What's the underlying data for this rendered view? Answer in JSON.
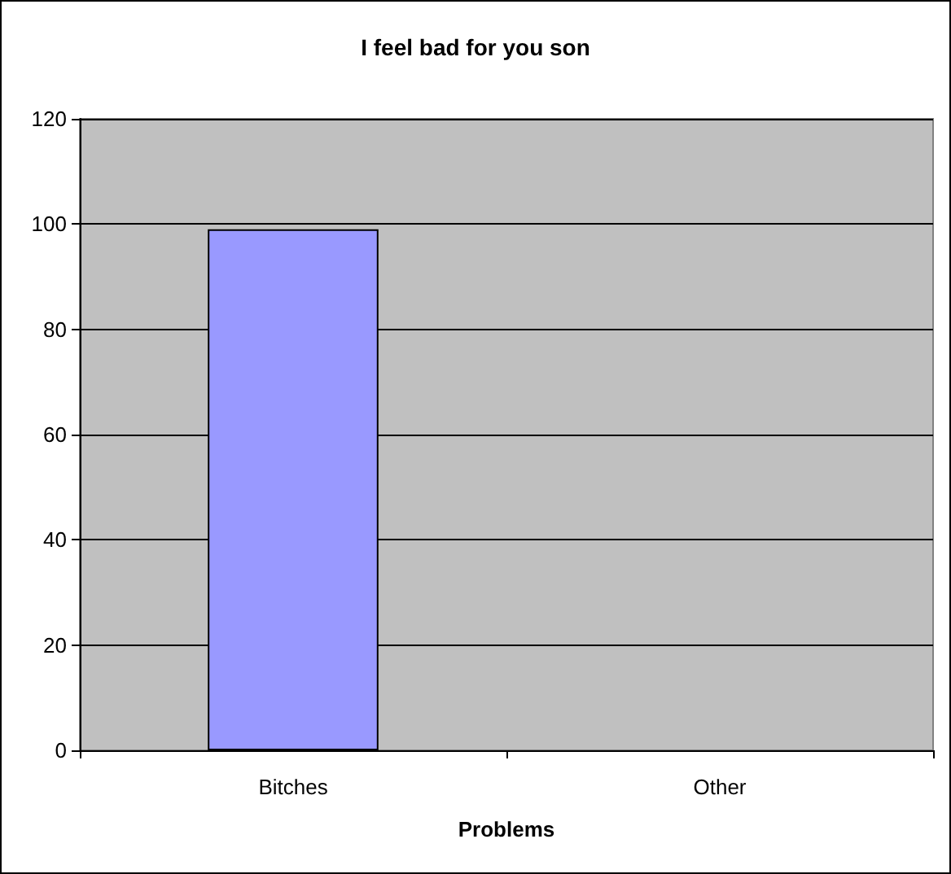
{
  "chart_data": {
    "type": "bar",
    "title": "I feel bad for you son",
    "xlabel": "Problems",
    "categories": [
      "Bitches",
      "Other"
    ],
    "values": [
      99,
      0
    ],
    "color": "#9999ff",
    "ylim": [
      0,
      120
    ],
    "yticks": [
      0,
      20,
      40,
      60,
      80,
      100,
      120
    ],
    "grid": "y"
  }
}
